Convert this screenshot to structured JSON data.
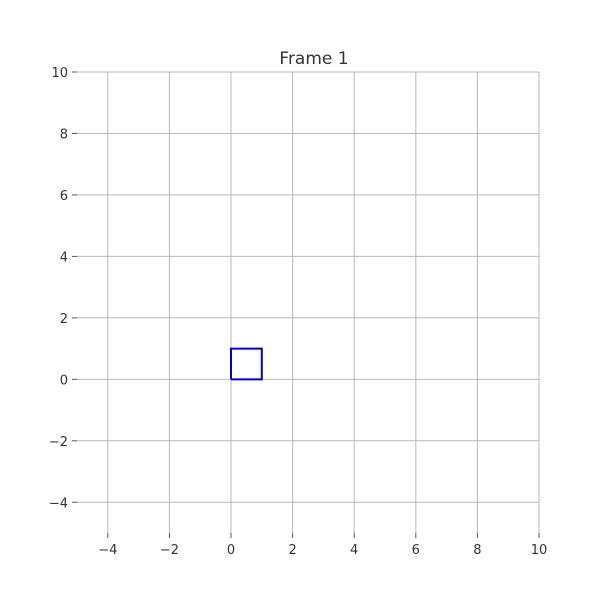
{
  "chart_data": {
    "type": "line",
    "title": "Frame 1",
    "xlabel": "",
    "ylabel": "",
    "xlim": [
      -5,
      10
    ],
    "ylim": [
      -5,
      10
    ],
    "x_ticks": [
      -4,
      -2,
      0,
      2,
      4,
      6,
      8,
      10
    ],
    "y_ticks": [
      -4,
      -2,
      0,
      2,
      4,
      6,
      8,
      10
    ],
    "x_tick_labels": [
      "−4",
      "−2",
      "0",
      "2",
      "4",
      "6",
      "8",
      "10"
    ],
    "y_tick_labels": [
      "−4",
      "−2",
      "0",
      "2",
      "4",
      "6",
      "8",
      "10"
    ],
    "grid": true,
    "series": [
      {
        "color": "#0000cc",
        "x": [
          0,
          1,
          1,
          0,
          0
        ],
        "y": [
          0,
          0,
          1,
          1,
          0
        ]
      }
    ]
  }
}
